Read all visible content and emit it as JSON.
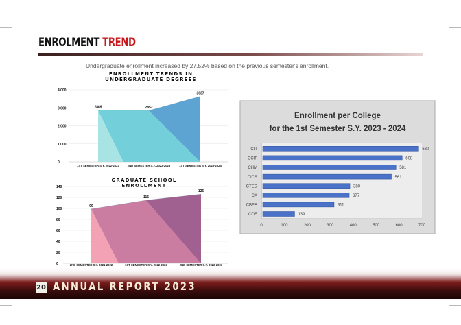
{
  "page": {
    "title_main": "ENROLMENT",
    "title_accent": "TREND",
    "intro": "Undergraduate enrollment increased by 27.52% based on the previous semester's enrollment.",
    "page_number": "20",
    "report_title": "ANNUAL REPORT 2023",
    "colors": {
      "accent": "#c8181e",
      "footer_dark": "#3c0d0d"
    }
  },
  "chart_data": [
    {
      "type": "area",
      "title": "ENROLLMENT TRENDS IN UNDERGRADUATE DEGREES",
      "title_lines": [
        "ENROLLMENT TRENDS IN",
        "UNDERGRADUATE DEGREES"
      ],
      "categories": [
        "1ST SEMESTER S.Y. 2022-2023",
        "2ND SEMESTER S.Y. 2022-2023",
        "1ST SEMESTER S.Y. 2023-2024"
      ],
      "values": [
        2869,
        2852,
        3637
      ],
      "y_ticks": [
        "0",
        "1,000",
        "2,000",
        "3,000",
        "4,000"
      ],
      "ylim": [
        0,
        4000
      ],
      "grid": true,
      "data_labels": [
        "2869",
        "2852",
        "3637"
      ],
      "colors": [
        "#a8e4e4",
        "#6dcdd8",
        "#5b9fd0"
      ]
    },
    {
      "type": "area",
      "title": "GRADUATE SCHOOL ENROLLMENT",
      "title_lines": [
        "GRADUATE SCHOOL",
        "ENROLLMENT"
      ],
      "categories": [
        "2ND SEMESTER S.Y. 2021-2022",
        "1ST SEMESTER S.Y. 2022-2023",
        "2ND SEMESTER S.Y. 2022-2023"
      ],
      "values": [
        99,
        115,
        126
      ],
      "y_ticks": [
        "0",
        "20",
        "40",
        "60",
        "80",
        "100",
        "120",
        "140"
      ],
      "ylim": [
        0,
        140
      ],
      "grid": true,
      "data_labels": [
        "99",
        "115",
        "126"
      ],
      "colors": [
        "#f2a2b4",
        "#c6789e",
        "#9c5e8e"
      ]
    },
    {
      "type": "bar",
      "orientation": "horizontal",
      "title_lines": [
        "Enrollment per College",
        "for the 1st Semester S.Y. 2023 - 2024"
      ],
      "categories": [
        "CIT",
        "CCIF",
        "CHM",
        "CICS",
        "CTED",
        "CA",
        "CBEA",
        "COE"
      ],
      "values": [
        680,
        608,
        581,
        561,
        380,
        377,
        311,
        139
      ],
      "data_labels": [
        "680",
        "608",
        "581",
        "561",
        "380",
        "377",
        "311",
        "139"
      ],
      "x_ticks": [
        "0",
        "100",
        "200",
        "300",
        "400",
        "500",
        "600",
        "700"
      ],
      "xlim": [
        0,
        700
      ],
      "bar_color": "#4a72c8",
      "plot_bg": "#dcdcdc"
    }
  ]
}
